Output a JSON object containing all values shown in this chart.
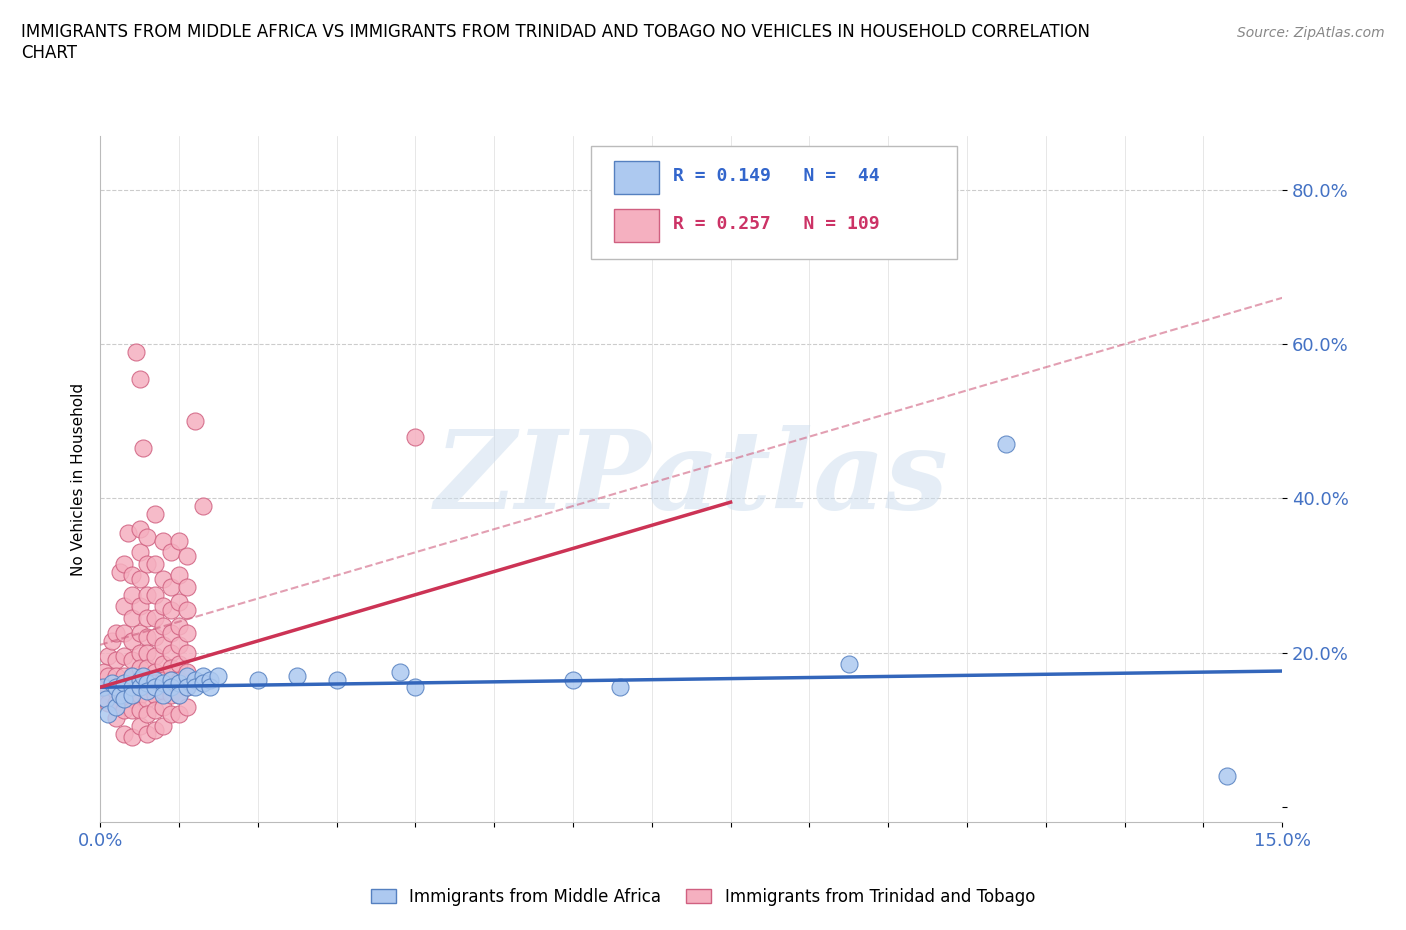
{
  "title": "IMMIGRANTS FROM MIDDLE AFRICA VS IMMIGRANTS FROM TRINIDAD AND TOBAGO NO VEHICLES IN HOUSEHOLD CORRELATION\nCHART",
  "source": "Source: ZipAtlas.com",
  "ylabel_text": "No Vehicles in Household",
  "xmin": 0.0,
  "xmax": 0.15,
  "ymin": -0.02,
  "ymax": 0.87,
  "ytick_vals": [
    0.0,
    0.2,
    0.4,
    0.6,
    0.8
  ],
  "ytick_labels": [
    "",
    "20.0%",
    "40.0%",
    "60.0%",
    "80.0%"
  ],
  "R_blue": 0.149,
  "N_blue": 44,
  "R_pink": 0.257,
  "N_pink": 109,
  "watermark": "ZIPatlas",
  "blue_color": "#adc9f0",
  "pink_color": "#f5b0c0",
  "blue_edge_color": "#5580c0",
  "pink_edge_color": "#d06080",
  "blue_line_color": "#3366bb",
  "pink_line_color": "#cc3355",
  "blue_dash_color": "#aabbdd",
  "scatter_blue": [
    [
      0.0004,
      0.155
    ],
    [
      0.0008,
      0.14
    ],
    [
      0.001,
      0.12
    ],
    [
      0.0015,
      0.16
    ],
    [
      0.002,
      0.13
    ],
    [
      0.002,
      0.155
    ],
    [
      0.0025,
      0.145
    ],
    [
      0.003,
      0.16
    ],
    [
      0.003,
      0.14
    ],
    [
      0.004,
      0.17
    ],
    [
      0.004,
      0.155
    ],
    [
      0.004,
      0.145
    ],
    [
      0.005,
      0.165
    ],
    [
      0.005,
      0.155
    ],
    [
      0.0055,
      0.17
    ],
    [
      0.006,
      0.16
    ],
    [
      0.006,
      0.15
    ],
    [
      0.007,
      0.165
    ],
    [
      0.007,
      0.155
    ],
    [
      0.008,
      0.16
    ],
    [
      0.008,
      0.145
    ],
    [
      0.009,
      0.165
    ],
    [
      0.009,
      0.155
    ],
    [
      0.01,
      0.16
    ],
    [
      0.01,
      0.145
    ],
    [
      0.011,
      0.17
    ],
    [
      0.011,
      0.155
    ],
    [
      0.012,
      0.165
    ],
    [
      0.012,
      0.155
    ],
    [
      0.013,
      0.17
    ],
    [
      0.013,
      0.16
    ],
    [
      0.014,
      0.165
    ],
    [
      0.014,
      0.155
    ],
    [
      0.015,
      0.17
    ],
    [
      0.02,
      0.165
    ],
    [
      0.025,
      0.17
    ],
    [
      0.03,
      0.165
    ],
    [
      0.038,
      0.175
    ],
    [
      0.04,
      0.155
    ],
    [
      0.06,
      0.165
    ],
    [
      0.066,
      0.155
    ],
    [
      0.095,
      0.185
    ],
    [
      0.115,
      0.47
    ],
    [
      0.143,
      0.04
    ]
  ],
  "scatter_pink": [
    [
      0.0003,
      0.155
    ],
    [
      0.0005,
      0.175
    ],
    [
      0.001,
      0.195
    ],
    [
      0.001,
      0.17
    ],
    [
      0.001,
      0.15
    ],
    [
      0.001,
      0.135
    ],
    [
      0.0015,
      0.215
    ],
    [
      0.002,
      0.225
    ],
    [
      0.002,
      0.19
    ],
    [
      0.002,
      0.17
    ],
    [
      0.002,
      0.15
    ],
    [
      0.002,
      0.135
    ],
    [
      0.002,
      0.115
    ],
    [
      0.0025,
      0.305
    ],
    [
      0.003,
      0.315
    ],
    [
      0.003,
      0.26
    ],
    [
      0.003,
      0.225
    ],
    [
      0.003,
      0.195
    ],
    [
      0.003,
      0.17
    ],
    [
      0.003,
      0.155
    ],
    [
      0.003,
      0.14
    ],
    [
      0.003,
      0.125
    ],
    [
      0.003,
      0.095
    ],
    [
      0.0035,
      0.355
    ],
    [
      0.004,
      0.3
    ],
    [
      0.004,
      0.275
    ],
    [
      0.004,
      0.245
    ],
    [
      0.004,
      0.215
    ],
    [
      0.004,
      0.19
    ],
    [
      0.004,
      0.17
    ],
    [
      0.004,
      0.155
    ],
    [
      0.004,
      0.14
    ],
    [
      0.004,
      0.125
    ],
    [
      0.004,
      0.09
    ],
    [
      0.0045,
      0.59
    ],
    [
      0.005,
      0.555
    ],
    [
      0.005,
      0.36
    ],
    [
      0.005,
      0.33
    ],
    [
      0.005,
      0.295
    ],
    [
      0.005,
      0.26
    ],
    [
      0.005,
      0.225
    ],
    [
      0.005,
      0.2
    ],
    [
      0.005,
      0.18
    ],
    [
      0.005,
      0.165
    ],
    [
      0.005,
      0.155
    ],
    [
      0.005,
      0.145
    ],
    [
      0.005,
      0.125
    ],
    [
      0.005,
      0.105
    ],
    [
      0.0055,
      0.465
    ],
    [
      0.006,
      0.35
    ],
    [
      0.006,
      0.315
    ],
    [
      0.006,
      0.275
    ],
    [
      0.006,
      0.245
    ],
    [
      0.006,
      0.22
    ],
    [
      0.006,
      0.2
    ],
    [
      0.006,
      0.18
    ],
    [
      0.006,
      0.165
    ],
    [
      0.006,
      0.155
    ],
    [
      0.006,
      0.14
    ],
    [
      0.006,
      0.12
    ],
    [
      0.006,
      0.095
    ],
    [
      0.007,
      0.38
    ],
    [
      0.007,
      0.315
    ],
    [
      0.007,
      0.275
    ],
    [
      0.007,
      0.245
    ],
    [
      0.007,
      0.22
    ],
    [
      0.007,
      0.195
    ],
    [
      0.007,
      0.175
    ],
    [
      0.007,
      0.16
    ],
    [
      0.007,
      0.145
    ],
    [
      0.007,
      0.125
    ],
    [
      0.007,
      0.1
    ],
    [
      0.008,
      0.345
    ],
    [
      0.008,
      0.295
    ],
    [
      0.008,
      0.26
    ],
    [
      0.008,
      0.235
    ],
    [
      0.008,
      0.21
    ],
    [
      0.008,
      0.185
    ],
    [
      0.008,
      0.165
    ],
    [
      0.008,
      0.15
    ],
    [
      0.008,
      0.13
    ],
    [
      0.008,
      0.105
    ],
    [
      0.009,
      0.33
    ],
    [
      0.009,
      0.285
    ],
    [
      0.009,
      0.255
    ],
    [
      0.009,
      0.225
    ],
    [
      0.009,
      0.2
    ],
    [
      0.009,
      0.18
    ],
    [
      0.009,
      0.165
    ],
    [
      0.009,
      0.145
    ],
    [
      0.009,
      0.12
    ],
    [
      0.01,
      0.345
    ],
    [
      0.01,
      0.3
    ],
    [
      0.01,
      0.265
    ],
    [
      0.01,
      0.235
    ],
    [
      0.01,
      0.21
    ],
    [
      0.01,
      0.185
    ],
    [
      0.01,
      0.165
    ],
    [
      0.01,
      0.145
    ],
    [
      0.01,
      0.12
    ],
    [
      0.011,
      0.325
    ],
    [
      0.011,
      0.285
    ],
    [
      0.011,
      0.255
    ],
    [
      0.011,
      0.225
    ],
    [
      0.011,
      0.2
    ],
    [
      0.011,
      0.175
    ],
    [
      0.011,
      0.155
    ],
    [
      0.011,
      0.13
    ],
    [
      0.012,
      0.5
    ],
    [
      0.013,
      0.39
    ],
    [
      0.04,
      0.48
    ]
  ]
}
